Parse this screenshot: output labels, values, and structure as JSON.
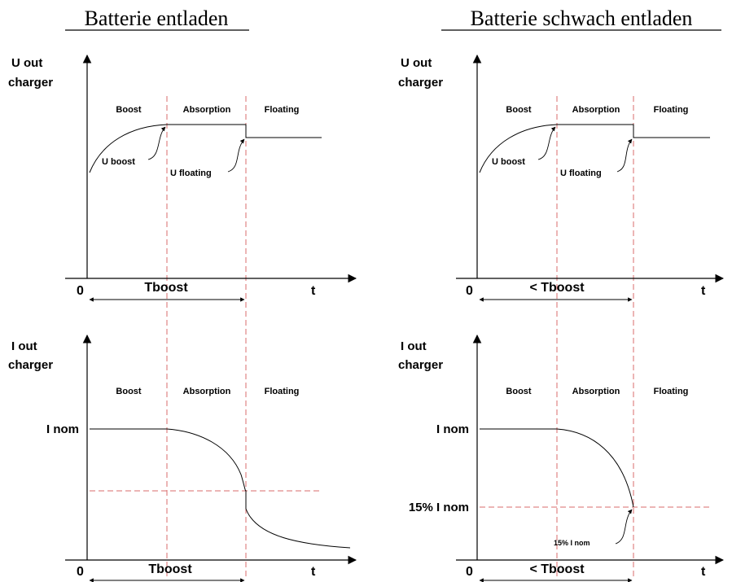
{
  "left": {
    "title": "Batterie  entladen",
    "u_axis_label": [
      "U out",
      "charger"
    ],
    "i_axis_label": [
      "I out",
      "charger"
    ],
    "phases": [
      "Boost",
      "Absorption",
      "Floating"
    ],
    "u_boost": "U boost",
    "u_floating": "U floating",
    "i_nom": "I nom",
    "origin": "0",
    "t": "t",
    "tboost_top": "Tboost",
    "tboost_bottom": "Tboost"
  },
  "right": {
    "title": "Batterie  schwach entladen",
    "u_axis_label": [
      "U out",
      "charger"
    ],
    "i_axis_label": [
      "I out",
      "charger"
    ],
    "phases": [
      "Boost",
      "Absorption",
      "Floating"
    ],
    "u_boost": "U boost",
    "u_floating": "U floating",
    "i_nom": "I nom",
    "i_15_axis": "15% I nom",
    "i_15_annot": "15% I nom",
    "origin": "0",
    "t": "t",
    "tboost_top": "< Tboost",
    "tboost_bottom": "< Tboost"
  }
}
